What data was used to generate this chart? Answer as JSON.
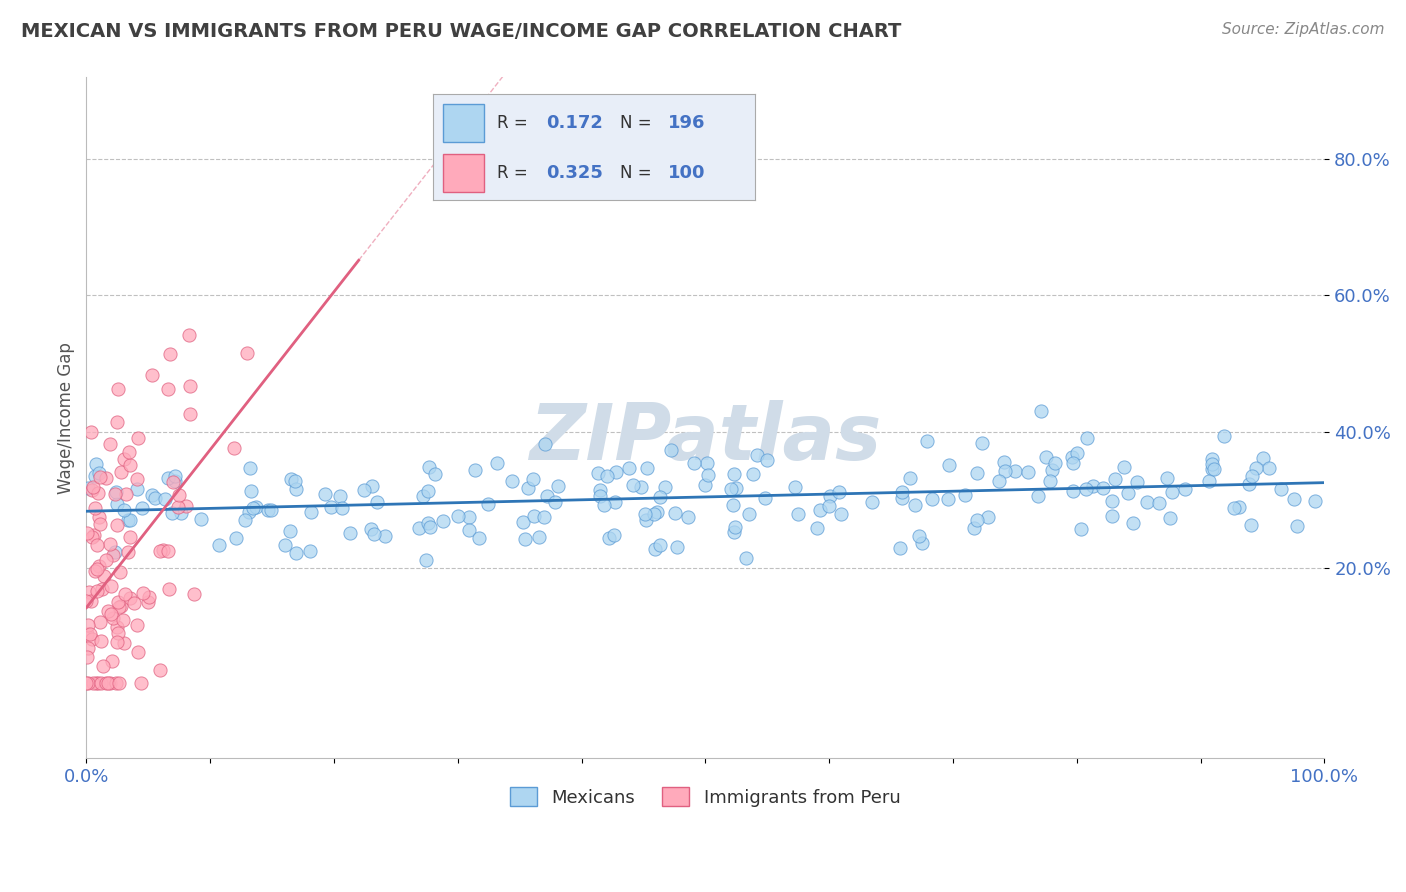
{
  "title": "MEXICAN VS IMMIGRANTS FROM PERU WAGE/INCOME GAP CORRELATION CHART",
  "source": "Source: ZipAtlas.com",
  "ylabel": "Wage/Income Gap",
  "xlabel": "",
  "xlim": [
    0.0,
    1.0
  ],
  "ylim": [
    -0.08,
    0.92
  ],
  "yticks": [
    0.2,
    0.4,
    0.6,
    0.8
  ],
  "ytick_labels": [
    "20.0%",
    "40.0%",
    "60.0%",
    "80.0%"
  ],
  "xticks": [
    0.0,
    0.1,
    0.2,
    0.3,
    0.4,
    0.5,
    0.6,
    0.7,
    0.8,
    0.9,
    1.0
  ],
  "xtick_labels": [
    "0.0%",
    "",
    "",
    "",
    "",
    "",
    "",
    "",
    "",
    "",
    "100.0%"
  ],
  "series": [
    {
      "name": "Mexicans",
      "color": "#AED6F1",
      "edge_color": "#5B9BD5",
      "R": 0.172,
      "N": 196,
      "trend_color": "#2E75B6",
      "trend_style": "-"
    },
    {
      "name": "Immigrants from Peru",
      "color": "#FFAABB",
      "edge_color": "#E06080",
      "R": 0.325,
      "N": 100,
      "trend_color": "#E06080",
      "trend_style": "-"
    }
  ],
  "watermark": "ZIPatlas",
  "watermark_color": "#D0DCE8",
  "background_color": "#FFFFFF",
  "grid_color": "#C0C0C0",
  "title_color": "#404040",
  "axis_color": "#4472C4",
  "legend_box_color": "#E8EEF8",
  "legend_border_color": "#AAAAAA"
}
